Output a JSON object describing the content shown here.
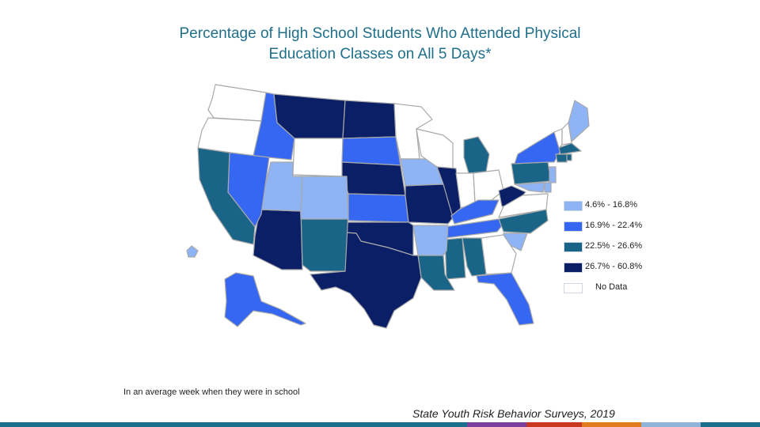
{
  "title_line1": "Percentage of High School Students Who Attended Physical",
  "title_line2": "Education Classes on All 5 Days*",
  "legend": [
    {
      "label": "4.6% - 16.8%",
      "color": "#8fb4f5"
    },
    {
      "label": "16.9% - 22.4%",
      "color": "#3567f2"
    },
    {
      "label": "22.5% - 26.6%",
      "color": "#1a6488"
    },
    {
      "label": "26.7% - 60.8%",
      "color": "#0a1f66"
    },
    {
      "label": "No Data",
      "color": "#ffffff"
    }
  ],
  "footnote": "In an average week when they were in school",
  "source": "State Youth Risk Behavior Surveys, 2019",
  "stripe_colors": [
    "#1a6f8a",
    "#7b3fa0",
    "#c8371f",
    "#e07b1e",
    "#8fb4d8",
    "#1a6f8a"
  ],
  "map": {
    "fill": {
      "c1": "#8fb4f5",
      "c2": "#3567f2",
      "c3": "#1a6488",
      "c4": "#0a1f66",
      "none": "#ffffff"
    },
    "border": "#a9a9a9",
    "states": {
      "WA": "none",
      "OR": "none",
      "ID": "c2",
      "MT": "c4",
      "WY": "none",
      "ND": "c4",
      "SD": "c2",
      "NE": "c4",
      "KS": "c2",
      "MN": "none",
      "IA": "c1",
      "MO": "c4",
      "WI": "none",
      "IL": "c4",
      "MI": "c3",
      "IN": "none",
      "OH": "none",
      "KY": "c2",
      "TN": "c2",
      "WV": "c4",
      "PA": "c3",
      "NY": "c2",
      "VT": "none",
      "NH": "none",
      "ME": "c1",
      "MA": "c3",
      "CT": "c3",
      "RI": "c3",
      "NJ": "c1",
      "DE": "c1",
      "MD": "c1",
      "VA": "none",
      "NC": "c3",
      "SC": "c1",
      "GA": "none",
      "FL": "c2",
      "AL": "c3",
      "MS": "c3",
      "LA": "c3",
      "AR": "c1",
      "OK": "c4",
      "TX": "c4",
      "NM": "c3",
      "AZ": "c4",
      "CO": "c1",
      "UT": "c1",
      "NV": "c2",
      "CA": "c3",
      "AK": "c2",
      "HI": "c1"
    }
  }
}
